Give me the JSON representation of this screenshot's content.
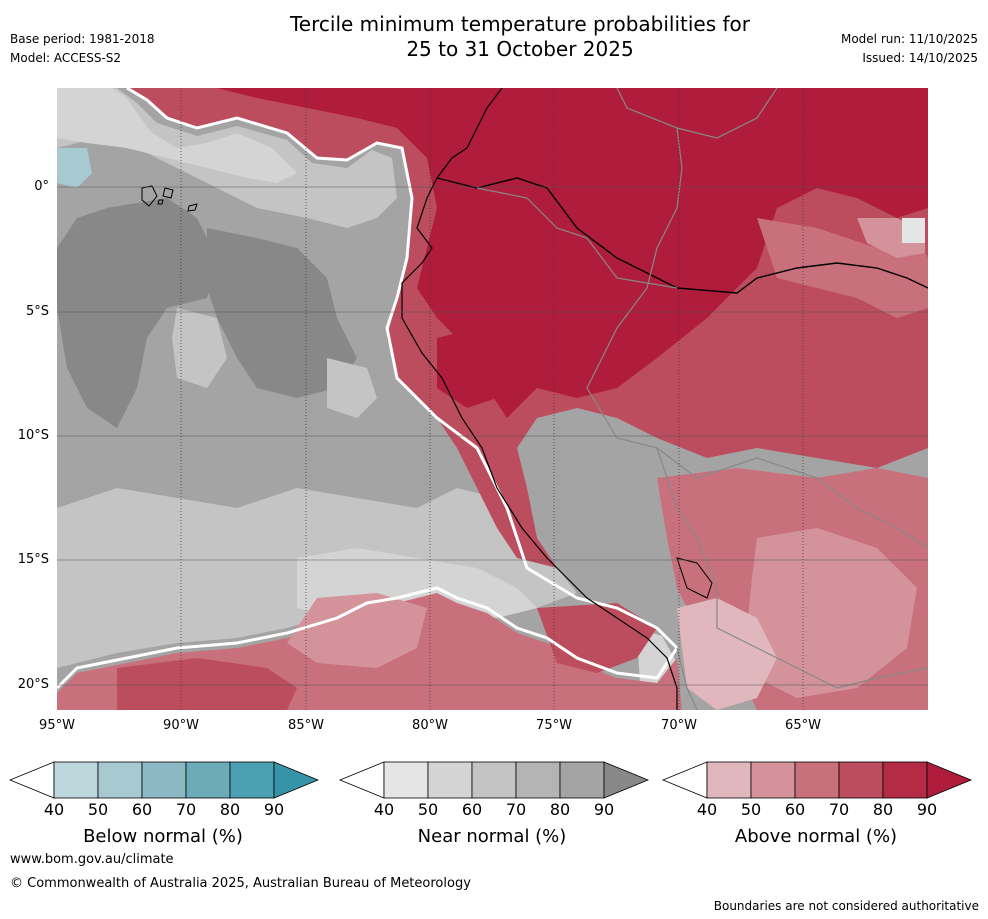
{
  "header": {
    "title_line1": "Tercile minimum temperature probabilities for",
    "title_line2": "25 to 31 October 2025",
    "base_period": "Base period: 1981-2018",
    "model": "Model: ACCESS-S2",
    "model_run": "Model run: 11/10/2025",
    "issued": "Issued: 14/10/2025"
  },
  "map": {
    "lat_labels": [
      "0°",
      "5°S",
      "10°S",
      "15°S",
      "20°S"
    ],
    "lon_labels": [
      "95°W",
      "90°W",
      "85°W",
      "80°W",
      "75°W",
      "70°W",
      "65°W"
    ],
    "colors": {
      "above": [
        "#ffffff",
        "#e0b7bc",
        "#d4939b",
        "#c8707c",
        "#bc4d5e",
        "#b42b45",
        "#b01d3c"
      ],
      "near": [
        "#ffffff",
        "#e5e5e5",
        "#d4d4d4",
        "#c4c4c4",
        "#b4b4b4",
        "#a4a4a4",
        "#888888"
      ],
      "below": [
        "#ffffff",
        "#bdd6dc",
        "#a7c9d0",
        "#8bb8c3",
        "#6cabb8",
        "#4ba1b2",
        "#3794a8"
      ]
    }
  },
  "legend": {
    "below": {
      "title": "Below normal (%)",
      "ticks": [
        "40",
        "50",
        "60",
        "70",
        "80",
        "90"
      ],
      "colors": [
        "#ffffff",
        "#bdd6dc",
        "#a7c9d0",
        "#8bb8c3",
        "#6cabb8",
        "#4ba1b2",
        "#3794a8"
      ]
    },
    "near": {
      "title": "Near normal (%)",
      "ticks": [
        "40",
        "50",
        "60",
        "70",
        "80",
        "90"
      ],
      "colors": [
        "#ffffff",
        "#e5e5e5",
        "#d4d4d4",
        "#c4c4c4",
        "#b4b4b4",
        "#a4a4a4",
        "#888888"
      ]
    },
    "above": {
      "title": "Above normal (%)",
      "ticks": [
        "40",
        "50",
        "60",
        "70",
        "80",
        "90"
      ],
      "colors": [
        "#ffffff",
        "#e0b7bc",
        "#d4939b",
        "#c8707c",
        "#bc4d5e",
        "#b42b45",
        "#b01d3c"
      ]
    }
  },
  "footer": {
    "website": "www.bom.gov.au/climate",
    "copyright": "© Commonwealth of Australia 2025, Australian Bureau of Meteorology",
    "disclaimer": "Boundaries are not considered authoritative"
  }
}
